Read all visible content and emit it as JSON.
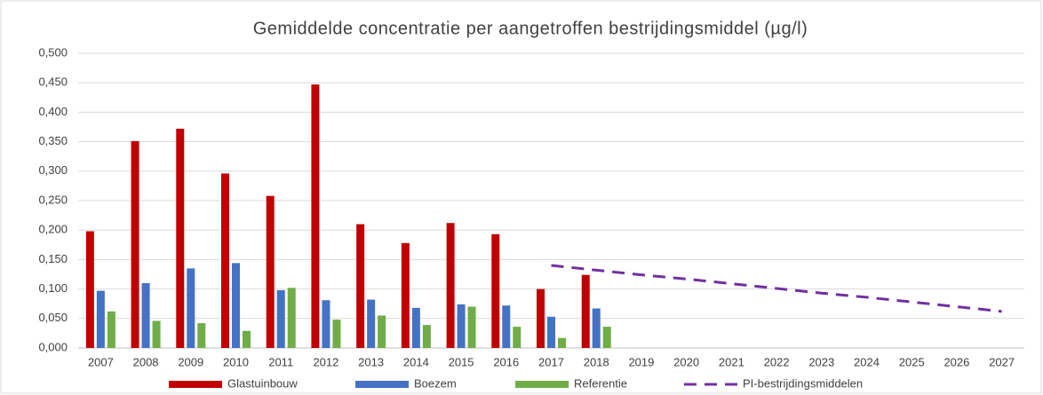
{
  "chart_data": {
    "type": "bar",
    "title": "Gemiddelde concentratie per aangetroffen bestrijdingsmiddel (µg/l)",
    "categories": [
      "2007",
      "2008",
      "2009",
      "2010",
      "2011",
      "2012",
      "2013",
      "2014",
      "2015",
      "2016",
      "2017",
      "2018",
      "2019",
      "2020",
      "2021",
      "2022",
      "2023",
      "2024",
      "2025",
      "2026",
      "2027"
    ],
    "series": [
      {
        "name": "Glastuinbouw",
        "color": "#c00000",
        "type": "bar",
        "values": [
          0.198,
          0.351,
          0.372,
          0.296,
          0.258,
          0.447,
          0.21,
          0.178,
          0.212,
          0.193,
          0.1,
          0.124,
          null,
          null,
          null,
          null,
          null,
          null,
          null,
          null,
          null
        ]
      },
      {
        "name": "Boezem",
        "color": "#4472c4",
        "type": "bar",
        "values": [
          0.097,
          0.11,
          0.135,
          0.144,
          0.098,
          0.081,
          0.082,
          0.068,
          0.074,
          0.072,
          0.053,
          0.067,
          null,
          null,
          null,
          null,
          null,
          null,
          null,
          null,
          null
        ]
      },
      {
        "name": "Referentie",
        "color": "#70ad47",
        "type": "bar",
        "values": [
          0.062,
          0.046,
          0.042,
          0.029,
          0.102,
          0.048,
          0.055,
          0.039,
          0.07,
          0.036,
          0.017,
          0.036,
          null,
          null,
          null,
          null,
          null,
          null,
          null,
          null,
          null
        ]
      },
      {
        "name": "PI-bestrijdingsmiddelen",
        "color": "#7030a0",
        "type": "line",
        "dashed": true,
        "values": [
          null,
          null,
          null,
          null,
          null,
          null,
          null,
          null,
          null,
          null,
          0.14,
          0.132,
          0.124,
          0.117,
          0.109,
          0.101,
          0.093,
          0.086,
          0.078,
          0.07,
          0.062
        ]
      }
    ],
    "ylim": [
      0,
      0.5
    ],
    "yticks": [
      {
        "value": 0,
        "label": "0,000"
      },
      {
        "value": 0.05,
        "label": "0,050"
      },
      {
        "value": 0.1,
        "label": "0,100"
      },
      {
        "value": 0.15,
        "label": "0,150"
      },
      {
        "value": 0.2,
        "label": "0,200"
      },
      {
        "value": 0.25,
        "label": "0,250"
      },
      {
        "value": 0.3,
        "label": "0,300"
      },
      {
        "value": 0.35,
        "label": "0,350"
      },
      {
        "value": 0.4,
        "label": "0,400"
      },
      {
        "value": 0.45,
        "label": "0,450"
      },
      {
        "value": 0.5,
        "label": "0,500"
      }
    ],
    "grid": true,
    "legend": "bottom"
  }
}
